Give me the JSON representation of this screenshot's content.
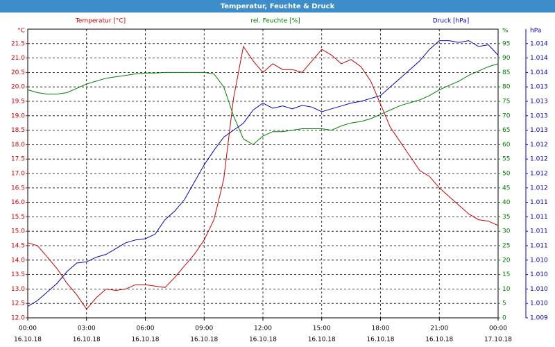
{
  "chart_data": {
    "type": "line",
    "title": "Temperatur, Feuchte & Druck",
    "axis_titles": {
      "y": "Temperatur [°C]",
      "y2": "rel. Feuchte [%]",
      "y3": "Druck [hPa]"
    },
    "axis_units": {
      "y": "°C",
      "y2": "%",
      "y3": "hPa"
    },
    "x": [
      0,
      0.5,
      1,
      1.5,
      2,
      2.5,
      3,
      3.5,
      4,
      4.5,
      5,
      5.5,
      6,
      6.5,
      7,
      7.5,
      8,
      8.5,
      9,
      9.5,
      10,
      10.5,
      11,
      11.5,
      12,
      12.5,
      13,
      13.5,
      14,
      14.5,
      15,
      15.5,
      16,
      16.5,
      17,
      17.5,
      18,
      18.5,
      19,
      19.5,
      20,
      20.5,
      21,
      21.5,
      22,
      22.5,
      23,
      23.5,
      24
    ],
    "xlim": [
      0,
      24
    ],
    "xticks": [
      {
        "value": 0,
        "label": "00:00"
      },
      {
        "value": 3,
        "label": "03:00"
      },
      {
        "value": 6,
        "label": "06:00"
      },
      {
        "value": 9,
        "label": "09:00"
      },
      {
        "value": 12,
        "label": "12:00"
      },
      {
        "value": 15,
        "label": "15:00"
      },
      {
        "value": 18,
        "label": "18:00"
      },
      {
        "value": 21,
        "label": "21:00"
      },
      {
        "value": 24,
        "label": "00:00"
      }
    ],
    "xtick_dates": [
      "16.10.18",
      "16.10.18",
      "16.10.18",
      "16.10.18",
      "16.10.18",
      "16.10.18",
      "16.10.18",
      "16.10.18",
      "17.10.18"
    ],
    "ylim": [
      12,
      22
    ],
    "yticks": [
      {
        "value": 12,
        "label": "12.0"
      },
      {
        "value": 12.5,
        "label": "12.5"
      },
      {
        "value": 13,
        "label": "13.0"
      },
      {
        "value": 13.5,
        "label": "13.5"
      },
      {
        "value": 14,
        "label": "14.0"
      },
      {
        "value": 14.5,
        "label": "14.5"
      },
      {
        "value": 15,
        "label": "15.0"
      },
      {
        "value": 15.5,
        "label": "15.5"
      },
      {
        "value": 16,
        "label": "16.0"
      },
      {
        "value": 16.5,
        "label": "16.5"
      },
      {
        "value": 17,
        "label": "17.0"
      },
      {
        "value": 17.5,
        "label": "17.5"
      },
      {
        "value": 18,
        "label": "18.0"
      },
      {
        "value": 18.5,
        "label": "18.5"
      },
      {
        "value": 19,
        "label": "19.0"
      },
      {
        "value": 19.5,
        "label": "19.5"
      },
      {
        "value": 20,
        "label": "20.0"
      },
      {
        "value": 20.5,
        "label": "20.5"
      },
      {
        "value": 21,
        "label": "21.0"
      },
      {
        "value": 21.5,
        "label": "21.5"
      }
    ],
    "y2lim": [
      0,
      100
    ],
    "y2ticks": [
      0,
      5,
      10,
      15,
      20,
      25,
      30,
      35,
      40,
      45,
      50,
      55,
      60,
      65,
      70,
      75,
      80,
      85,
      90,
      95
    ],
    "y3lim": [
      1009.25,
      1014.25
    ],
    "y3ticks": [
      {
        "value": 1009.25,
        "label": "1.009"
      },
      {
        "value": 1009.5,
        "label": "1.010"
      },
      {
        "value": 1009.75,
        "label": "1.010"
      },
      {
        "value": 1010,
        "label": "1.010"
      },
      {
        "value": 1010.25,
        "label": "1.010"
      },
      {
        "value": 1010.5,
        "label": "1.011"
      },
      {
        "value": 1010.75,
        "label": "1.011"
      },
      {
        "value": 1011,
        "label": "1.011"
      },
      {
        "value": 1011.25,
        "label": "1.011"
      },
      {
        "value": 1011.5,
        "label": "1.012"
      },
      {
        "value": 1011.75,
        "label": "1.012"
      },
      {
        "value": 1012,
        "label": "1.012"
      },
      {
        "value": 1012.25,
        "label": "1.012"
      },
      {
        "value": 1012.5,
        "label": "1.013"
      },
      {
        "value": 1012.75,
        "label": "1.013"
      },
      {
        "value": 1013,
        "label": "1.013"
      },
      {
        "value": 1013.25,
        "label": "1.013"
      },
      {
        "value": 1013.5,
        "label": "1.014"
      },
      {
        "value": 1013.75,
        "label": "1.014"
      },
      {
        "value": 1014,
        "label": "1.014"
      }
    ],
    "grid": true,
    "series": [
      {
        "name": "Temperatur [°C]",
        "color": "#cc0000",
        "axis": "y",
        "values": [
          14.6,
          14.5,
          14.1,
          13.7,
          13.2,
          12.8,
          12.3,
          12.7,
          13.0,
          12.95,
          13.0,
          13.15,
          13.15,
          13.1,
          13.05,
          13.4,
          13.8,
          14.2,
          14.7,
          15.4,
          16.8,
          19.6,
          21.4,
          20.9,
          20.5,
          20.8,
          20.6,
          20.6,
          20.5,
          20.9,
          21.3,
          21.1,
          20.8,
          20.95,
          20.7,
          20.2,
          19.4,
          18.6,
          18.1,
          17.6,
          17.1,
          16.9,
          16.5,
          16.2,
          15.9,
          15.6,
          15.4,
          15.35,
          15.2
        ]
      },
      {
        "name": "rel. Feuchte [%]",
        "color": "#008000",
        "axis": "y2",
        "values": [
          79,
          78,
          77.5,
          77.5,
          78,
          79.5,
          81,
          82,
          83,
          83.5,
          84,
          84.5,
          84.8,
          84.8,
          85,
          85,
          85,
          85,
          85,
          84.5,
          80,
          70,
          62,
          60,
          63,
          64.5,
          64.5,
          65,
          65.5,
          65.5,
          65.5,
          65,
          66.5,
          67.5,
          68,
          69,
          70.5,
          72,
          73.5,
          74.5,
          75.5,
          77,
          79,
          80.5,
          82,
          84,
          85.5,
          87,
          88
        ]
      },
      {
        "name": "Druck [hPa]",
        "color": "#0000bb",
        "axis": "y3",
        "values": [
          1009.45,
          1009.55,
          1009.7,
          1009.85,
          1010.05,
          1010.2,
          1010.22,
          1010.3,
          1010.35,
          1010.45,
          1010.55,
          1010.6,
          1010.62,
          1010.7,
          1010.95,
          1011.1,
          1011.3,
          1011.6,
          1011.9,
          1012.15,
          1012.38,
          1012.5,
          1012.62,
          1012.85,
          1012.97,
          1012.88,
          1012.92,
          1012.87,
          1012.93,
          1012.9,
          1012.82,
          1012.87,
          1012.92,
          1012.97,
          1013.0,
          1013.05,
          1013.1,
          1013.25,
          1013.4,
          1013.55,
          1013.7,
          1013.9,
          1014.05,
          1014.05,
          1014.02,
          1014.05,
          1013.95,
          1013.98,
          1013.8
        ]
      }
    ]
  }
}
